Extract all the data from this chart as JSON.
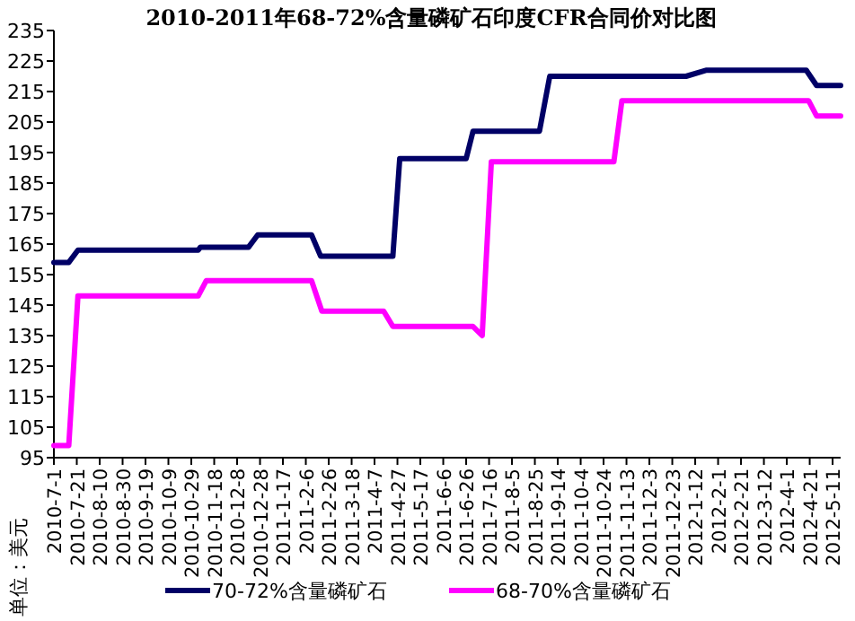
{
  "chart_data": {
    "type": "line",
    "title": "2010-2011年68-72%含量磷矿石印度CFR合同价对比图",
    "ylabel": "单位：美元",
    "xlim": [
      "2010-07-01",
      "2012-05-18"
    ],
    "xticks": [
      {
        "value": "2010-07-01",
        "label": "2010-7-1"
      },
      {
        "value": "2010-07-21",
        "label": "2010-7-21"
      },
      {
        "value": "2010-08-10",
        "label": "2010-8-10"
      },
      {
        "value": "2010-08-30",
        "label": "2010-8-30"
      },
      {
        "value": "2010-09-19",
        "label": "2010-9-19"
      },
      {
        "value": "2010-10-09",
        "label": "2010-10-9"
      },
      {
        "value": "2010-10-29",
        "label": "2010-10-29"
      },
      {
        "value": "2010-11-18",
        "label": "2010-11-18"
      },
      {
        "value": "2010-12-08",
        "label": "2010-12-8"
      },
      {
        "value": "2010-12-28",
        "label": "2010-12-28"
      },
      {
        "value": "2011-01-17",
        "label": "2011-1-17"
      },
      {
        "value": "2011-02-06",
        "label": "2011-2-6"
      },
      {
        "value": "2011-02-26",
        "label": "2011-2-26"
      },
      {
        "value": "2011-03-18",
        "label": "2011-3-18"
      },
      {
        "value": "2011-04-07",
        "label": "2011-4-7"
      },
      {
        "value": "2011-04-27",
        "label": "2011-4-27"
      },
      {
        "value": "2011-05-17",
        "label": "2011-5-17"
      },
      {
        "value": "2011-06-06",
        "label": "2011-6-6"
      },
      {
        "value": "2011-06-26",
        "label": "2011-6-26"
      },
      {
        "value": "2011-07-16",
        "label": "2011-7-16"
      },
      {
        "value": "2011-08-05",
        "label": "2011-8-5"
      },
      {
        "value": "2011-08-25",
        "label": "2011-8-25"
      },
      {
        "value": "2011-09-14",
        "label": "2011-9-14"
      },
      {
        "value": "2011-10-04",
        "label": "2011-10-4"
      },
      {
        "value": "2011-10-24",
        "label": "2011-10-24"
      },
      {
        "value": "2011-11-13",
        "label": "2011-11-13"
      },
      {
        "value": "2011-12-03",
        "label": "2011-12-3"
      },
      {
        "value": "2011-12-23",
        "label": "2011-12-23"
      },
      {
        "value": "2012-01-12",
        "label": "2012-1-12"
      },
      {
        "value": "2012-02-01",
        "label": "2012-2-1"
      },
      {
        "value": "2012-02-21",
        "label": "2012-2-21"
      },
      {
        "value": "2012-03-12",
        "label": "2012-3-12"
      },
      {
        "value": "2012-04-01",
        "label": "2012-4-1"
      },
      {
        "value": "2012-04-21",
        "label": "2012-4-21"
      },
      {
        "value": "2012-05-11",
        "label": "2012-5-11"
      }
    ],
    "ylim": [
      95,
      235
    ],
    "yticks": [
      95,
      105,
      115,
      125,
      135,
      145,
      155,
      165,
      175,
      185,
      195,
      205,
      215,
      225,
      235
    ],
    "grid": false,
    "legend": "bottom",
    "marker": "none",
    "line_style": "solid",
    "series": [
      {
        "name": "70-72%含量磷矿石",
        "color": "#000066",
        "x": [
          "2010-07-01",
          "2010-07-14",
          "2010-07-22",
          "2010-11-04",
          "2010-11-06",
          "2010-12-18",
          "2010-12-26",
          "2011-02-11",
          "2011-02-19",
          "2011-04-23",
          "2011-04-29",
          "2011-06-26",
          "2011-07-02",
          "2011-08-29",
          "2011-09-07",
          "2012-01-04",
          "2012-01-22",
          "2012-04-18",
          "2012-04-27",
          "2012-05-18"
        ],
        "values": [
          159,
          159,
          163,
          163,
          164,
          164,
          168,
          168,
          161,
          161,
          193,
          193,
          202,
          202,
          220,
          220,
          222,
          222,
          217,
          217
        ]
      },
      {
        "name": "68-70%含量磷矿石",
        "color": "#ff00ff",
        "x": [
          "2010-07-01",
          "2010-07-14",
          "2010-07-22",
          "2010-11-04",
          "2010-11-11",
          "2011-02-11",
          "2011-02-20",
          "2011-04-15",
          "2011-04-23",
          "2011-07-02",
          "2011-07-10",
          "2011-07-18",
          "2011-11-02",
          "2011-11-09",
          "2012-04-20",
          "2012-04-27",
          "2012-05-18"
        ],
        "values": [
          99,
          99,
          148,
          148,
          153,
          153,
          143,
          143,
          138,
          138,
          135,
          192,
          192,
          212,
          212,
          207,
          207
        ]
      }
    ]
  }
}
